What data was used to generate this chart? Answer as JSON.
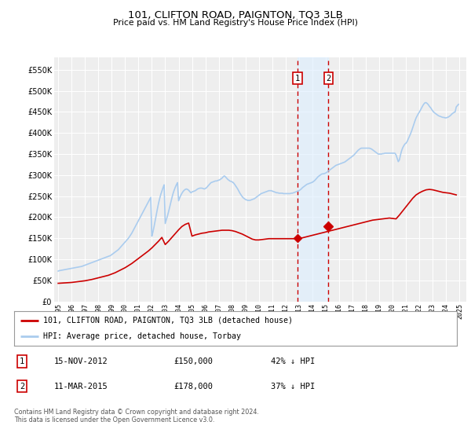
{
  "title": "101, CLIFTON ROAD, PAIGNTON, TQ3 3LB",
  "subtitle": "Price paid vs. HM Land Registry's House Price Index (HPI)",
  "ylim": [
    0,
    580000
  ],
  "yticks": [
    0,
    50000,
    100000,
    150000,
    200000,
    250000,
    300000,
    350000,
    400000,
    450000,
    500000,
    550000
  ],
  "ytick_labels": [
    "£0",
    "£50K",
    "£100K",
    "£150K",
    "£200K",
    "£250K",
    "£300K",
    "£350K",
    "£400K",
    "£450K",
    "£500K",
    "£550K"
  ],
  "xlim_start": 1994.7,
  "xlim_end": 2025.5,
  "background_color": "#ffffff",
  "plot_bg_color": "#eeeeee",
  "grid_color": "#ffffff",
  "line1_color": "#cc0000",
  "line2_color": "#aaccee",
  "marker1_color": "#cc0000",
  "event1_x": 2012.875,
  "event1_y": 150000,
  "event2_x": 2015.19,
  "event2_y": 178000,
  "event_box_color": "#cc0000",
  "event_shade_color": "#ddeeff",
  "legend_label1": "101, CLIFTON ROAD, PAIGNTON, TQ3 3LB (detached house)",
  "legend_label2": "HPI: Average price, detached house, Torbay",
  "table_rows": [
    {
      "num": "1",
      "date": "15-NOV-2012",
      "price": "£150,000",
      "pct": "42% ↓ HPI"
    },
    {
      "num": "2",
      "date": "11-MAR-2015",
      "price": "£178,000",
      "pct": "37% ↓ HPI"
    }
  ],
  "footer": "Contains HM Land Registry data © Crown copyright and database right 2024.\nThis data is licensed under the Open Government Licence v3.0.",
  "hpi_years": [
    1995.0,
    1995.083,
    1995.167,
    1995.25,
    1995.333,
    1995.417,
    1995.5,
    1995.583,
    1995.667,
    1995.75,
    1995.833,
    1995.917,
    1996.0,
    1996.083,
    1996.167,
    1996.25,
    1996.333,
    1996.417,
    1996.5,
    1996.583,
    1996.667,
    1996.75,
    1996.833,
    1996.917,
    1997.0,
    1997.083,
    1997.167,
    1997.25,
    1997.333,
    1997.417,
    1997.5,
    1997.583,
    1997.667,
    1997.75,
    1997.833,
    1997.917,
    1998.0,
    1998.083,
    1998.167,
    1998.25,
    1998.333,
    1998.417,
    1998.5,
    1998.583,
    1998.667,
    1998.75,
    1998.833,
    1998.917,
    1999.0,
    1999.083,
    1999.167,
    1999.25,
    1999.333,
    1999.417,
    1999.5,
    1999.583,
    1999.667,
    1999.75,
    1999.833,
    1999.917,
    2000.0,
    2000.083,
    2000.167,
    2000.25,
    2000.333,
    2000.417,
    2000.5,
    2000.583,
    2000.667,
    2000.75,
    2000.833,
    2000.917,
    2001.0,
    2001.083,
    2001.167,
    2001.25,
    2001.333,
    2001.417,
    2001.5,
    2001.583,
    2001.667,
    2001.75,
    2001.833,
    2001.917,
    2002.0,
    2002.083,
    2002.167,
    2002.25,
    2002.333,
    2002.417,
    2002.5,
    2002.583,
    2002.667,
    2002.75,
    2002.833,
    2002.917,
    2003.0,
    2003.083,
    2003.167,
    2003.25,
    2003.333,
    2003.417,
    2003.5,
    2003.583,
    2003.667,
    2003.75,
    2003.833,
    2003.917,
    2004.0,
    2004.083,
    2004.167,
    2004.25,
    2004.333,
    2004.417,
    2004.5,
    2004.583,
    2004.667,
    2004.75,
    2004.833,
    2004.917,
    2005.0,
    2005.083,
    2005.167,
    2005.25,
    2005.333,
    2005.417,
    2005.5,
    2005.583,
    2005.667,
    2005.75,
    2005.833,
    2005.917,
    2006.0,
    2006.083,
    2006.167,
    2006.25,
    2006.333,
    2006.417,
    2006.5,
    2006.583,
    2006.667,
    2006.75,
    2006.833,
    2006.917,
    2007.0,
    2007.083,
    2007.167,
    2007.25,
    2007.333,
    2007.417,
    2007.5,
    2007.583,
    2007.667,
    2007.75,
    2007.833,
    2007.917,
    2008.0,
    2008.083,
    2008.167,
    2008.25,
    2008.333,
    2008.417,
    2008.5,
    2008.583,
    2008.667,
    2008.75,
    2008.833,
    2008.917,
    2009.0,
    2009.083,
    2009.167,
    2009.25,
    2009.333,
    2009.417,
    2009.5,
    2009.583,
    2009.667,
    2009.75,
    2009.833,
    2009.917,
    2010.0,
    2010.083,
    2010.167,
    2010.25,
    2010.333,
    2010.417,
    2010.5,
    2010.583,
    2010.667,
    2010.75,
    2010.833,
    2010.917,
    2011.0,
    2011.083,
    2011.167,
    2011.25,
    2011.333,
    2011.417,
    2011.5,
    2011.583,
    2011.667,
    2011.75,
    2011.833,
    2011.917,
    2012.0,
    2012.083,
    2012.167,
    2012.25,
    2012.333,
    2012.417,
    2012.5,
    2012.583,
    2012.667,
    2012.75,
    2012.833,
    2012.917,
    2013.0,
    2013.083,
    2013.167,
    2013.25,
    2013.333,
    2013.417,
    2013.5,
    2013.583,
    2013.667,
    2013.75,
    2013.833,
    2013.917,
    2014.0,
    2014.083,
    2014.167,
    2014.25,
    2014.333,
    2014.417,
    2014.5,
    2014.583,
    2014.667,
    2014.75,
    2014.833,
    2014.917,
    2015.0,
    2015.083,
    2015.167,
    2015.25,
    2015.333,
    2015.417,
    2015.5,
    2015.583,
    2015.667,
    2015.75,
    2015.833,
    2015.917,
    2016.0,
    2016.083,
    2016.167,
    2016.25,
    2016.333,
    2016.417,
    2016.5,
    2016.583,
    2016.667,
    2016.75,
    2016.833,
    2016.917,
    2017.0,
    2017.083,
    2017.167,
    2017.25,
    2017.333,
    2017.417,
    2017.5,
    2017.583,
    2017.667,
    2017.75,
    2017.833,
    2017.917,
    2018.0,
    2018.083,
    2018.167,
    2018.25,
    2018.333,
    2018.417,
    2018.5,
    2018.583,
    2018.667,
    2018.75,
    2018.833,
    2018.917,
    2019.0,
    2019.083,
    2019.167,
    2019.25,
    2019.333,
    2019.417,
    2019.5,
    2019.583,
    2019.667,
    2019.75,
    2019.833,
    2019.917,
    2020.0,
    2020.083,
    2020.167,
    2020.25,
    2020.333,
    2020.417,
    2020.5,
    2020.583,
    2020.667,
    2020.75,
    2020.833,
    2020.917,
    2021.0,
    2021.083,
    2021.167,
    2021.25,
    2021.333,
    2021.417,
    2021.5,
    2021.583,
    2021.667,
    2021.75,
    2021.833,
    2021.917,
    2022.0,
    2022.083,
    2022.167,
    2022.25,
    2022.333,
    2022.417,
    2022.5,
    2022.583,
    2022.667,
    2022.75,
    2022.833,
    2022.917,
    2023.0,
    2023.083,
    2023.167,
    2023.25,
    2023.333,
    2023.417,
    2023.5,
    2023.583,
    2023.667,
    2023.75,
    2023.833,
    2023.917,
    2024.0,
    2024.083,
    2024.167,
    2024.25,
    2024.333,
    2024.417,
    2024.5,
    2024.583,
    2024.667,
    2024.75,
    2024.833,
    2024.917
  ],
  "hpi_vals": [
    72000,
    73000,
    73500,
    74000,
    74500,
    75000,
    75500,
    76000,
    76500,
    77000,
    77500,
    78000,
    78500,
    79000,
    79500,
    80000,
    80500,
    81000,
    81500,
    82000,
    82500,
    83000,
    84000,
    85000,
    86000,
    87000,
    88000,
    89000,
    90000,
    91000,
    92000,
    93000,
    94000,
    95000,
    96000,
    97000,
    98000,
    99000,
    100000,
    101000,
    102000,
    103000,
    104000,
    105000,
    106000,
    107000,
    108000,
    109000,
    111000,
    113000,
    115000,
    117000,
    119000,
    121000,
    123000,
    126000,
    129000,
    132000,
    135000,
    138000,
    141000,
    144000,
    147000,
    150000,
    154000,
    158000,
    162000,
    167000,
    172000,
    177000,
    182000,
    187000,
    192000,
    197000,
    202000,
    207000,
    212000,
    217000,
    222000,
    227000,
    232000,
    237000,
    242000,
    247000,
    155000,
    165000,
    178000,
    192000,
    207000,
    220000,
    233000,
    244000,
    254000,
    262000,
    270000,
    277000,
    185000,
    194000,
    203000,
    213000,
    224000,
    235000,
    246000,
    256000,
    264000,
    271000,
    277000,
    282000,
    239000,
    246000,
    252000,
    257000,
    261000,
    264000,
    266000,
    267000,
    266000,
    264000,
    261000,
    258000,
    260000,
    261000,
    262000,
    263000,
    265000,
    267000,
    268000,
    269000,
    269000,
    269000,
    268000,
    267000,
    268000,
    270000,
    273000,
    276000,
    279000,
    282000,
    283000,
    284000,
    285000,
    286000,
    286000,
    287000,
    288000,
    289000,
    291000,
    293000,
    296000,
    298000,
    296000,
    293000,
    290000,
    288000,
    286000,
    285000,
    284000,
    282000,
    279000,
    275000,
    271000,
    267000,
    262000,
    257000,
    253000,
    249000,
    246000,
    244000,
    242000,
    241000,
    240000,
    240000,
    240000,
    241000,
    242000,
    243000,
    244000,
    246000,
    248000,
    250000,
    252000,
    254000,
    256000,
    257000,
    258000,
    259000,
    260000,
    261000,
    262000,
    263000,
    263000,
    263000,
    262000,
    261000,
    260000,
    259000,
    258000,
    258000,
    257000,
    257000,
    257000,
    257000,
    256000,
    256000,
    256000,
    256000,
    256000,
    256000,
    256000,
    257000,
    257000,
    258000,
    259000,
    260000,
    261000,
    262000,
    263000,
    265000,
    267000,
    270000,
    272000,
    274000,
    276000,
    278000,
    279000,
    280000,
    281000,
    282000,
    283000,
    285000,
    287000,
    290000,
    293000,
    296000,
    298000,
    300000,
    302000,
    303000,
    303000,
    304000,
    305000,
    307000,
    309000,
    311000,
    313000,
    315000,
    317000,
    319000,
    321000,
    323000,
    324000,
    325000,
    326000,
    327000,
    328000,
    329000,
    330000,
    331000,
    333000,
    335000,
    337000,
    339000,
    341000,
    343000,
    345000,
    347000,
    350000,
    353000,
    356000,
    359000,
    361000,
    363000,
    364000,
    364000,
    364000,
    364000,
    364000,
    364000,
    364000,
    364000,
    363000,
    362000,
    360000,
    358000,
    356000,
    354000,
    352000,
    350000,
    350000,
    350000,
    350000,
    351000,
    351000,
    352000,
    352000,
    352000,
    352000,
    352000,
    352000,
    352000,
    352000,
    352000,
    352000,
    348000,
    340000,
    332000,
    336000,
    348000,
    358000,
    365000,
    370000,
    374000,
    376000,
    380000,
    386000,
    392000,
    398000,
    405000,
    413000,
    421000,
    429000,
    436000,
    441000,
    446000,
    450000,
    455000,
    460000,
    465000,
    469000,
    472000,
    472000,
    470000,
    467000,
    463000,
    460000,
    456000,
    452000,
    449000,
    447000,
    445000,
    443000,
    441000,
    440000,
    439000,
    438000,
    437000,
    437000,
    436000,
    436000,
    437000,
    438000,
    440000,
    442000,
    445000,
    447000,
    449000,
    450000,
    462000,
    465000,
    468000
  ],
  "prop_years": [
    1995.0,
    1995.25,
    1995.5,
    1995.75,
    1996.0,
    1996.25,
    1996.5,
    1996.75,
    1997.0,
    1997.25,
    1997.5,
    1997.75,
    1998.0,
    1998.25,
    1998.5,
    1998.75,
    1999.0,
    1999.25,
    1999.5,
    1999.75,
    2000.0,
    2000.25,
    2000.5,
    2000.75,
    2001.0,
    2001.25,
    2001.5,
    2001.75,
    2002.0,
    2002.25,
    2002.5,
    2002.75,
    2003.0,
    2003.25,
    2003.5,
    2003.75,
    2004.0,
    2004.25,
    2004.5,
    2004.75,
    2005.0,
    2005.25,
    2005.5,
    2005.75,
    2006.0,
    2006.25,
    2006.5,
    2006.75,
    2007.0,
    2007.25,
    2007.5,
    2007.75,
    2008.0,
    2008.25,
    2008.5,
    2008.75,
    2009.0,
    2009.25,
    2009.5,
    2009.75,
    2010.0,
    2010.25,
    2010.5,
    2010.75,
    2011.0,
    2011.25,
    2011.5,
    2011.75,
    2012.0,
    2012.25,
    2012.5,
    2012.75,
    2013.0,
    2013.25,
    2013.5,
    2013.75,
    2014.0,
    2014.25,
    2014.5,
    2014.75,
    2015.0,
    2015.25,
    2015.5,
    2015.75,
    2016.0,
    2016.25,
    2016.5,
    2016.75,
    2017.0,
    2017.25,
    2017.5,
    2017.75,
    2018.0,
    2018.25,
    2018.5,
    2018.75,
    2019.0,
    2019.25,
    2019.5,
    2019.75,
    2020.0,
    2020.25,
    2020.5,
    2020.75,
    2021.0,
    2021.25,
    2021.5,
    2021.75,
    2022.0,
    2022.25,
    2022.5,
    2022.75,
    2023.0,
    2023.25,
    2023.5,
    2023.75,
    2024.0,
    2024.25,
    2024.5,
    2024.75
  ],
  "prop_vals": [
    43000,
    43500,
    44000,
    44500,
    45000,
    46000,
    47000,
    48000,
    49000,
    50500,
    52000,
    54000,
    56000,
    58000,
    60000,
    62000,
    65000,
    68000,
    72000,
    76000,
    80000,
    85000,
    90000,
    96000,
    102000,
    108000,
    114000,
    120000,
    127000,
    135000,
    143000,
    152000,
    135000,
    143000,
    152000,
    161000,
    170000,
    178000,
    183000,
    186000,
    155000,
    158000,
    160000,
    162000,
    163000,
    165000,
    166000,
    167000,
    168000,
    169000,
    169000,
    169000,
    168000,
    166000,
    163000,
    160000,
    156000,
    152000,
    148000,
    146000,
    146000,
    147000,
    148000,
    149000,
    149000,
    149000,
    149000,
    149000,
    149000,
    149000,
    149000,
    149000,
    150000,
    151000,
    153000,
    155000,
    157000,
    159000,
    161000,
    163000,
    165000,
    167000,
    169000,
    171000,
    173000,
    175000,
    177000,
    179000,
    181000,
    183000,
    185000,
    187000,
    189000,
    191000,
    193000,
    194000,
    195000,
    196000,
    197000,
    198000,
    197000,
    196000,
    205000,
    215000,
    225000,
    235000,
    245000,
    253000,
    258000,
    262000,
    265000,
    266000,
    265000,
    263000,
    261000,
    259000,
    258000,
    257000,
    255000,
    253000
  ]
}
